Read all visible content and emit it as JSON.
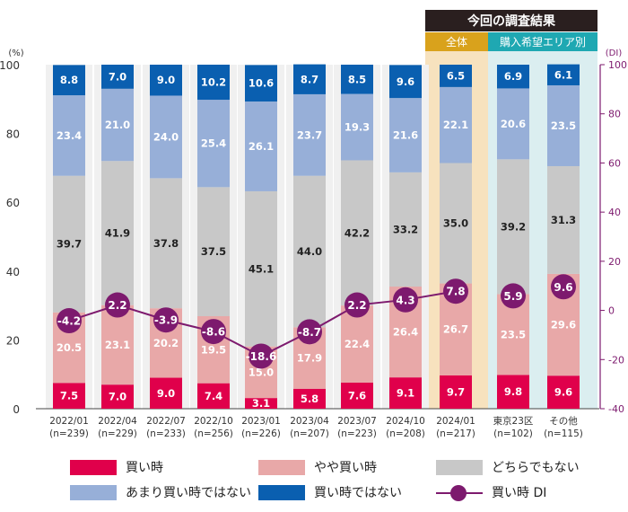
{
  "chart_data": {
    "type": "stacked-bar-with-line",
    "header": {
      "title": "今回の調査結果",
      "all_label": "全体",
      "area_label": "購入希望エリア別"
    },
    "left_axis": {
      "unit_label": "(%)",
      "ticks": [
        0,
        20,
        40,
        60,
        80,
        100
      ],
      "ylim": [
        0,
        100
      ]
    },
    "right_axis": {
      "unit_label": "(DI)",
      "ticks": [
        -40,
        -20,
        0,
        20,
        40,
        60,
        80,
        100
      ],
      "ylim": [
        -40,
        100
      ]
    },
    "categories": [
      {
        "date": "2022/01",
        "n": "(n=239)"
      },
      {
        "date": "2022/04",
        "n": "(n=229)"
      },
      {
        "date": "2022/07",
        "n": "(n=233)"
      },
      {
        "date": "2022/10",
        "n": "(n=256)"
      },
      {
        "date": "2023/01",
        "n": "(n=226)"
      },
      {
        "date": "2023/04",
        "n": "(n=207)"
      },
      {
        "date": "2023/07",
        "n": "(n=223)"
      },
      {
        "date": "2024/10",
        "n": "(n=208)"
      },
      {
        "date": "2024/01",
        "n": "(n=217)"
      },
      {
        "date": "東京23区",
        "n": "(n=102)"
      },
      {
        "date": "その他",
        "n": "(n=115)"
      }
    ],
    "series": [
      {
        "name": "買い時",
        "color": "#e0004b",
        "label_color": "#ffffff",
        "values": [
          7.5,
          7.0,
          9.0,
          7.4,
          3.1,
          5.8,
          7.6,
          9.1,
          9.7,
          9.8,
          9.6
        ]
      },
      {
        "name": "やや買い時",
        "color": "#e8a8a8",
        "label_color": "#ffffff",
        "values": [
          20.5,
          23.1,
          20.2,
          19.5,
          15.0,
          17.9,
          22.4,
          26.4,
          26.7,
          23.5,
          29.6
        ]
      },
      {
        "name": "どちらでもない",
        "color": "#c8c8c8",
        "label_color": "#222222",
        "values": [
          39.7,
          41.9,
          37.8,
          37.5,
          45.1,
          44.0,
          42.2,
          33.2,
          35.0,
          39.2,
          31.3
        ]
      },
      {
        "name": "あまり買い時ではない",
        "color": "#97afd8",
        "label_color": "#ffffff",
        "values": [
          23.4,
          21.0,
          24.0,
          25.4,
          26.1,
          23.7,
          19.3,
          21.6,
          22.1,
          20.6,
          23.5
        ]
      },
      {
        "name": "買い時ではない",
        "color": "#0a5fb0",
        "label_color": "#ffffff",
        "values": [
          8.8,
          7.0,
          9.0,
          10.2,
          10.6,
          8.7,
          8.5,
          9.6,
          6.5,
          6.9,
          6.1
        ]
      }
    ],
    "di_series": {
      "name": "買い時 DI",
      "color": "#7d1a6e",
      "values": [
        -4.2,
        2.2,
        -3.9,
        -8.6,
        -18.6,
        -8.7,
        2.2,
        4.3,
        7.8,
        5.9,
        9.6
      ],
      "labels": [
        "-4.2",
        "2.2",
        "-3.9",
        "-8.6",
        "-18.6",
        "-8.7",
        "2.2",
        "4.3",
        "7.8",
        "5.9",
        "9.6"
      ]
    },
    "highlight_colors": {
      "all": "#f7e2be",
      "area": "#dbeef0",
      "title_bg": "#2a1f1f",
      "all_header": "#d9a21c",
      "area_header": "#1fa8b2"
    }
  },
  "legend": [
    {
      "label": "買い時",
      "kind": "box",
      "color": "#e0004b"
    },
    {
      "label": "やや買い時",
      "kind": "box",
      "color": "#e8a8a8"
    },
    {
      "label": "どちらでもない",
      "kind": "box",
      "color": "#c8c8c8"
    },
    {
      "label": "あまり買い時ではない",
      "kind": "box",
      "color": "#97afd8"
    },
    {
      "label": "買い時ではない",
      "kind": "box",
      "color": "#0a5fb0"
    },
    {
      "label": "買い時 DI",
      "kind": "line"
    }
  ]
}
